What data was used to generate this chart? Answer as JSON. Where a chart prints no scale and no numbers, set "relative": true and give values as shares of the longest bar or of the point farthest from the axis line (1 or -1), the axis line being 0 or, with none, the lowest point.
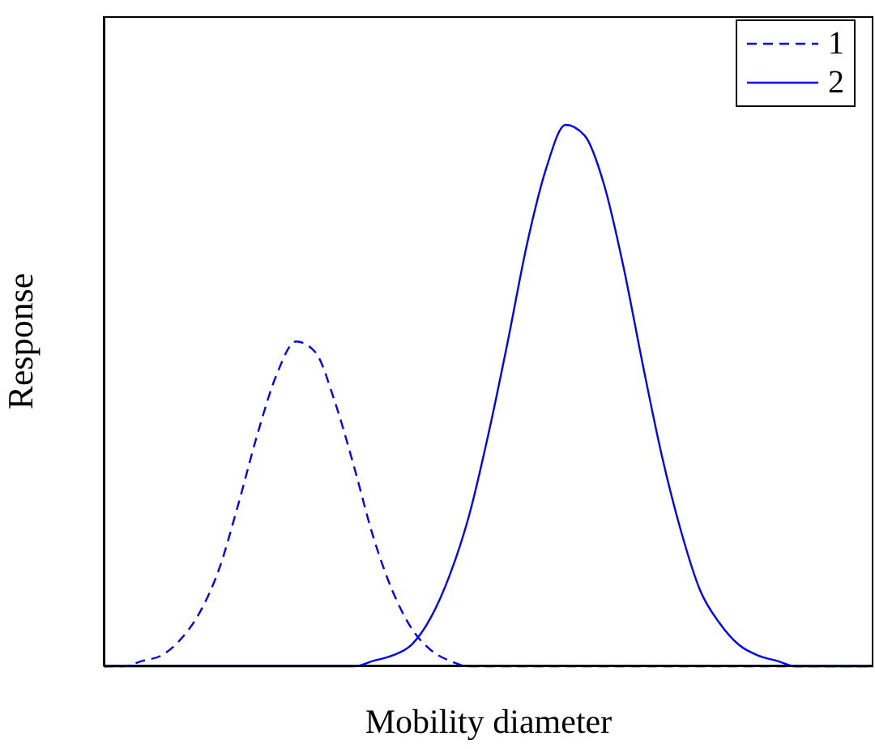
{
  "chart_data": {
    "type": "line",
    "relative": true,
    "xlabel": "Mobility diameter",
    "ylabel": "Response",
    "legend": "top right",
    "marker": "none",
    "categories": [
      null,
      null,
      null,
      null,
      null,
      null,
      null,
      null,
      null,
      null,
      null,
      null,
      null,
      null,
      null,
      null,
      null,
      null,
      null,
      null,
      null,
      null,
      null,
      null,
      null,
      null,
      null,
      null,
      null,
      null,
      null,
      null,
      null,
      null,
      null,
      null,
      null,
      null,
      null,
      null,
      null
    ],
    "series": [
      {
        "name": "1",
        "color": "#0000ff",
        "line_style": "dashed",
        "values": [
          0,
          0,
          0.01,
          0.02,
          0.05,
          0.1,
          0.18,
          0.3,
          0.43,
          0.54,
          0.6,
          0.58,
          0.49,
          0.37,
          0.24,
          0.14,
          0.07,
          0.03,
          0.01,
          0,
          0,
          0,
          0,
          0,
          0,
          0,
          0,
          0,
          0,
          0,
          0,
          0,
          0,
          0,
          0,
          0,
          0,
          0,
          0,
          0,
          0
        ]
      },
      {
        "name": "2",
        "color": "#0000ff",
        "line_style": "solid",
        "values": [
          0,
          0,
          0,
          0,
          0,
          0,
          0,
          0,
          0,
          0,
          0,
          0,
          0,
          0,
          0.01,
          0.02,
          0.04,
          0.09,
          0.17,
          0.28,
          0.43,
          0.6,
          0.78,
          0.92,
          1,
          0.98,
          0.89,
          0.74,
          0.56,
          0.39,
          0.25,
          0.14,
          0.08,
          0.04,
          0.02,
          0.01,
          0,
          0,
          0,
          0,
          0
        ]
      }
    ]
  }
}
